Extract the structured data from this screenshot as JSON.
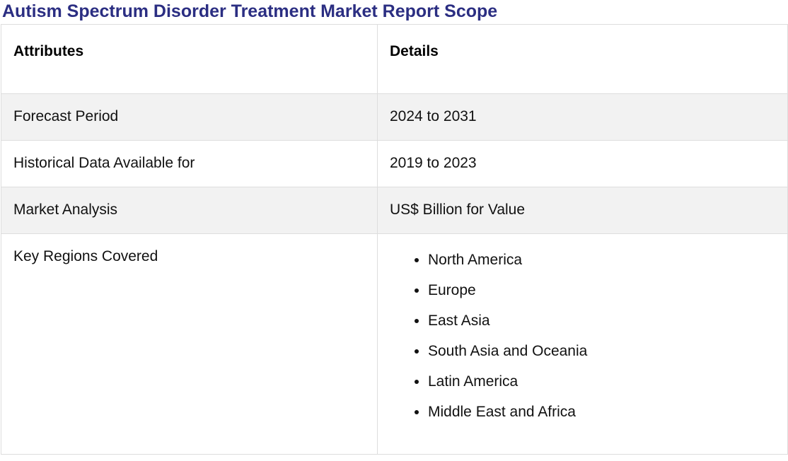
{
  "page": {
    "title": "Autism Spectrum Disorder Treatment Market Report Scope"
  },
  "table": {
    "headers": {
      "attributes": "Attributes",
      "details": "Details"
    },
    "rows": [
      {
        "attribute": "Forecast Period",
        "detail": "2024 to 2031"
      },
      {
        "attribute": "Historical Data Available for",
        "detail": "2019 to 2023"
      },
      {
        "attribute": "Market Analysis",
        "detail": "US$ Billion for Value"
      },
      {
        "attribute": "Key Regions Covered"
      }
    ],
    "regions": [
      "North America",
      "Europe",
      "East Asia",
      "South Asia and Oceania",
      "Latin America",
      "Middle East and Africa"
    ]
  },
  "colors": {
    "title": "#2b2e82",
    "border": "#dddddd",
    "shaded_row": "#f2f2f2"
  }
}
